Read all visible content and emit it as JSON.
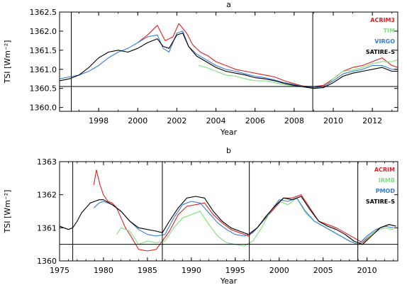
{
  "chart_data": [
    {
      "type": "line",
      "panel_label": "a",
      "xlabel": "Year",
      "ylabel": "TSI [Wm⁻²]",
      "xlim": [
        1996.0,
        2013.3
      ],
      "ylim": [
        1359.9,
        1362.5
      ],
      "x_ticks": [
        "1998",
        "2000",
        "2002",
        "2004",
        "2006",
        "2008",
        "2010",
        "2012"
      ],
      "y_ticks": [
        "1360.0",
        "1360.5",
        "1361.0",
        "1361.5",
        "1362.0",
        "1362.5"
      ],
      "hline": 1360.55,
      "vlines": [
        1996.6,
        2008.95
      ],
      "legend_position": "top-right",
      "series": [
        {
          "name": "ACRIM3",
          "color": "#e02020",
          "x": [
            2000.0,
            2000.5,
            2001.0,
            2001.4,
            2001.8,
            2002.1,
            2002.5,
            2002.8,
            2003.2,
            2003.6,
            2004.0,
            2004.5,
            2005.0,
            2005.5,
            2006.0,
            2006.5,
            2007.0,
            2007.5,
            2008.0,
            2008.5,
            2009.0,
            2009.5,
            2010.0,
            2010.5,
            2011.0,
            2011.5,
            2012.0,
            2012.5,
            2013.0,
            2013.3
          ],
          "y": [
            1361.7,
            1361.9,
            1362.15,
            1361.75,
            1361.85,
            1362.2,
            1361.95,
            1361.65,
            1361.45,
            1361.35,
            1361.2,
            1361.1,
            1361.0,
            1360.95,
            1360.9,
            1360.85,
            1360.8,
            1360.7,
            1360.62,
            1360.56,
            1360.55,
            1360.58,
            1360.75,
            1360.95,
            1361.05,
            1361.1,
            1361.2,
            1361.3,
            1361.1,
            1361.05
          ]
        },
        {
          "name": "TIM",
          "color": "#7ee07e",
          "x": [
            2003.1,
            2003.5,
            2004.0,
            2004.5,
            2005.0,
            2005.5,
            2006.0,
            2006.5,
            2007.0,
            2007.5,
            2008.0,
            2008.5,
            2009.0,
            2009.5,
            2010.0,
            2010.5,
            2011.0,
            2011.5,
            2012.0,
            2012.5,
            2013.0,
            2013.3
          ],
          "y": [
            1361.1,
            1361.05,
            1360.95,
            1360.85,
            1360.82,
            1360.75,
            1360.7,
            1360.7,
            1360.65,
            1360.6,
            1360.56,
            1360.53,
            1360.5,
            1360.52,
            1360.75,
            1360.95,
            1360.98,
            1361.05,
            1361.15,
            1361.2,
            1361.2,
            1361.25
          ]
        },
        {
          "name": "VIRGO",
          "color": "#3a7bd5",
          "x": [
            1996.0,
            1996.5,
            1997.0,
            1997.5,
            1998.0,
            1998.5,
            1999.0,
            1999.5,
            2000.0,
            2000.5,
            2001.0,
            2001.3,
            2001.6,
            2002.0,
            2002.3,
            2002.6,
            2003.0,
            2003.5,
            2004.0,
            2004.5,
            2005.0,
            2005.5,
            2006.0,
            2006.5,
            2007.0,
            2007.5,
            2008.0,
            2008.5,
            2009.0,
            2009.5,
            2010.0,
            2010.5,
            2011.0,
            2011.5,
            2012.0,
            2012.5,
            2013.0,
            2013.3
          ],
          "y": [
            1360.75,
            1360.8,
            1360.85,
            1360.95,
            1361.1,
            1361.3,
            1361.45,
            1361.55,
            1361.7,
            1361.85,
            1361.9,
            1361.55,
            1361.45,
            1361.95,
            1362.0,
            1361.6,
            1361.4,
            1361.25,
            1361.1,
            1361.0,
            1360.95,
            1360.88,
            1360.82,
            1360.78,
            1360.72,
            1360.65,
            1360.6,
            1360.55,
            1360.52,
            1360.55,
            1360.7,
            1360.88,
            1360.95,
            1361.0,
            1361.1,
            1361.1,
            1361.0,
            1361.0
          ]
        },
        {
          "name": "SATIRE–S",
          "color": "#000000",
          "x": [
            1996.0,
            1996.5,
            1997.0,
            1997.5,
            1998.0,
            1998.5,
            1999.0,
            1999.5,
            2000.0,
            2000.5,
            2001.0,
            2001.3,
            2001.6,
            2002.0,
            2002.3,
            2002.6,
            2003.0,
            2003.5,
            2004.0,
            2004.5,
            2005.0,
            2005.5,
            2006.0,
            2006.5,
            2007.0,
            2007.5,
            2008.0,
            2008.5,
            2009.0,
            2009.5,
            2010.0,
            2010.5,
            2011.0,
            2011.5,
            2012.0,
            2012.5,
            2013.0,
            2013.3
          ],
          "y": [
            1360.7,
            1360.75,
            1360.85,
            1361.05,
            1361.3,
            1361.45,
            1361.5,
            1361.45,
            1361.55,
            1361.7,
            1361.8,
            1361.6,
            1361.55,
            1361.9,
            1361.95,
            1361.6,
            1361.35,
            1361.2,
            1361.05,
            1360.95,
            1360.9,
            1360.85,
            1360.78,
            1360.75,
            1360.7,
            1360.63,
            1360.58,
            1360.54,
            1360.5,
            1360.52,
            1360.65,
            1360.82,
            1360.9,
            1360.95,
            1361.0,
            1361.05,
            1360.95,
            1360.95
          ]
        }
      ]
    },
    {
      "type": "line",
      "panel_label": "b",
      "xlabel": "Year",
      "ylabel": "TSI [Wm⁻²]",
      "xlim": [
        1975.0,
        2013.5
      ],
      "ylim": [
        1360.0,
        1363.0
      ],
      "x_ticks": [
        "1975",
        "1980",
        "1985",
        "1990",
        "1995",
        "2000",
        "2005",
        "2010"
      ],
      "y_ticks": [
        "1360",
        "1361",
        "1362",
        "1363"
      ],
      "hline": 1360.5,
      "vlines": [
        1976.5,
        1986.7,
        1996.6,
        2008.95
      ],
      "legend_position": "top-right",
      "series": [
        {
          "name": "ACRIM",
          "color": "#e02020",
          "x": [
            1978.9,
            1979.2,
            1979.6,
            1980.0,
            1980.5,
            1981.0,
            1981.5,
            1982.0,
            1982.5,
            1983.0,
            1984.0,
            1985.0,
            1986.0,
            1986.7,
            1987.5,
            1988.5,
            1989.5,
            1990.5,
            1991.5,
            1992.5,
            1993.5,
            1994.5,
            1995.5,
            1996.5,
            1997.5,
            1998.5,
            1999.5,
            2000.5,
            2001.5,
            2002.5,
            2003.5,
            2004.5,
            2005.5,
            2006.5,
            2007.5,
            2008.5,
            2009.5,
            2010.5,
            2011.5,
            2012.5,
            2013.3
          ],
          "y": [
            1362.3,
            1362.75,
            1362.3,
            1362.0,
            1361.8,
            1361.75,
            1361.6,
            1361.3,
            1361.0,
            1360.8,
            1360.35,
            1360.3,
            1360.35,
            1360.6,
            1360.9,
            1361.4,
            1361.65,
            1361.7,
            1361.75,
            1361.4,
            1361.15,
            1360.95,
            1360.85,
            1360.75,
            1361.0,
            1361.3,
            1361.6,
            1361.9,
            1361.9,
            1362.0,
            1361.6,
            1361.2,
            1361.1,
            1361.0,
            1360.85,
            1360.7,
            1360.55,
            1360.8,
            1361.0,
            1361.1,
            1361.05
          ]
        },
        {
          "name": "IRMB",
          "color": "#7ee07e",
          "x": [
            1981.5,
            1982.0,
            1983.0,
            1984.0,
            1985.0,
            1986.0,
            1987.0,
            1988.0,
            1989.0,
            1990.0,
            1991.0,
            1992.0,
            1993.0,
            1994.0,
            1995.0,
            1996.0,
            1997.0,
            1998.0,
            1999.0,
            2000.0,
            2001.0,
            2002.0,
            2003.0,
            2004.0,
            2005.0,
            2006.0,
            2007.0,
            2008.0,
            2009.0,
            2010.0,
            2011.0,
            2012.0,
            2013.0
          ],
          "y": [
            1360.8,
            1361.0,
            1360.9,
            1360.5,
            1360.6,
            1360.55,
            1360.6,
            1361.0,
            1361.3,
            1361.4,
            1361.5,
            1361.1,
            1360.75,
            1360.55,
            1360.5,
            1360.45,
            1360.6,
            1361.0,
            1361.5,
            1361.8,
            1361.7,
            1361.9,
            1361.45,
            1361.2,
            1361.05,
            1360.9,
            1360.75,
            1360.6,
            1360.5,
            1360.7,
            1360.9,
            1361.0,
            1360.95
          ]
        },
        {
          "name": "PMOD",
          "color": "#3a7bd5",
          "x": [
            1978.9,
            1979.5,
            1980.0,
            1981.0,
            1982.0,
            1983.0,
            1984.0,
            1985.0,
            1986.0,
            1987.0,
            1988.0,
            1989.0,
            1990.0,
            1991.0,
            1992.0,
            1993.0,
            1994.0,
            1995.0,
            1996.0,
            1997.0,
            1998.0,
            1999.0,
            2000.0,
            2001.0,
            2002.0,
            2003.0,
            2004.0,
            2005.0,
            2006.0,
            2007.0,
            2008.0,
            2009.0,
            2010.0,
            2011.0,
            2012.0,
            2013.0
          ],
          "y": [
            1361.6,
            1361.75,
            1361.8,
            1361.7,
            1361.5,
            1361.2,
            1360.95,
            1360.8,
            1360.75,
            1360.8,
            1361.3,
            1361.7,
            1361.8,
            1361.75,
            1361.45,
            1361.15,
            1360.95,
            1360.8,
            1360.75,
            1360.85,
            1361.15,
            1361.5,
            1361.85,
            1361.8,
            1361.9,
            1361.5,
            1361.2,
            1361.05,
            1360.9,
            1360.75,
            1360.6,
            1360.5,
            1360.75,
            1360.95,
            1361.05,
            1361.0
          ]
        },
        {
          "name": "SATIRE–S",
          "color": "#000000",
          "x": [
            1975.0,
            1975.5,
            1976.0,
            1976.5,
            1977.0,
            1977.5,
            1978.0,
            1978.5,
            1979.0,
            1979.5,
            1980.0,
            1981.0,
            1982.0,
            1983.0,
            1984.0,
            1985.0,
            1986.0,
            1986.7,
            1987.5,
            1988.5,
            1989.5,
            1990.5,
            1991.5,
            1992.5,
            1993.5,
            1994.5,
            1995.5,
            1996.5,
            1997.5,
            1998.5,
            1999.5,
            2000.5,
            2001.5,
            2002.5,
            2003.5,
            2004.5,
            2005.5,
            2006.5,
            2007.5,
            2008.5,
            2009.5,
            2010.5,
            2011.5,
            2012.5,
            2013.3
          ],
          "y": [
            1361.05,
            1361.0,
            1360.95,
            1361.0,
            1361.2,
            1361.45,
            1361.6,
            1361.75,
            1361.8,
            1361.85,
            1361.85,
            1361.7,
            1361.5,
            1361.2,
            1361.0,
            1360.95,
            1360.9,
            1360.85,
            1361.2,
            1361.6,
            1361.9,
            1361.95,
            1361.9,
            1361.5,
            1361.2,
            1361.0,
            1360.9,
            1360.8,
            1361.0,
            1361.35,
            1361.65,
            1361.9,
            1361.85,
            1361.95,
            1361.55,
            1361.2,
            1361.05,
            1360.95,
            1360.8,
            1360.6,
            1360.5,
            1360.75,
            1361.0,
            1361.1,
            1361.05
          ]
        }
      ]
    }
  ]
}
